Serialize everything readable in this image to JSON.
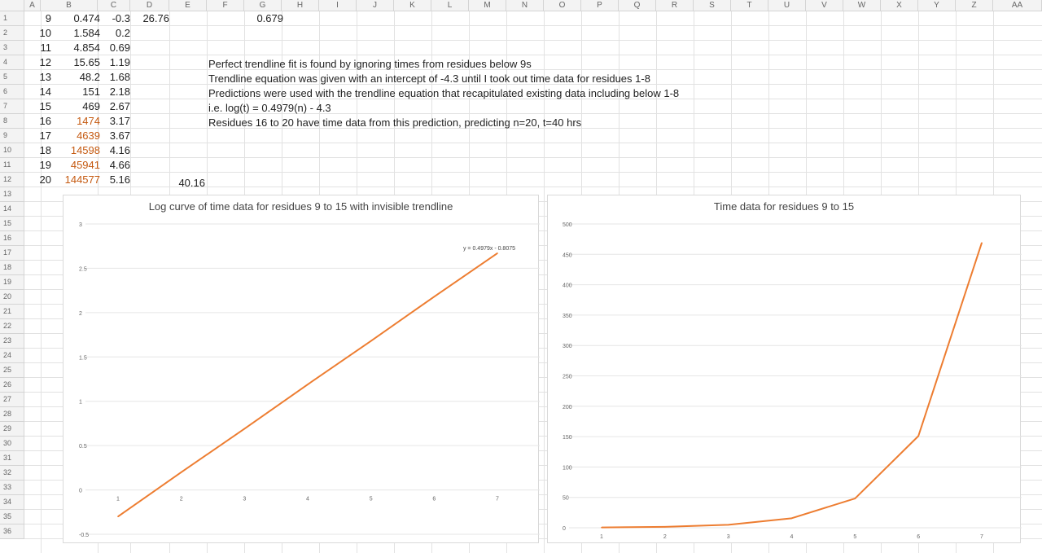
{
  "columns": [
    "A",
    "B",
    "C",
    "D",
    "E",
    "F",
    "G",
    "H",
    "I",
    "J",
    "K",
    "L",
    "M",
    "N",
    "O",
    "P",
    "Q",
    "R",
    "S",
    "T",
    "U",
    "V",
    "W",
    "X",
    "Y",
    "Z",
    "AA"
  ],
  "rows": [
    "1",
    "2",
    "3",
    "4",
    "5",
    "6",
    "7",
    "8",
    "9",
    "10",
    "11",
    "12",
    "13",
    "14",
    "15",
    "16",
    "17",
    "18",
    "19",
    "20",
    "21",
    "22",
    "23",
    "24",
    "25",
    "26",
    "27",
    "28",
    "29",
    "30",
    "31",
    "32",
    "33",
    "34",
    "35",
    "36"
  ],
  "table": {
    "colA": [
      "9",
      "10",
      "11",
      "12",
      "13",
      "14",
      "15",
      "16",
      "17",
      "18",
      "19",
      "20"
    ],
    "colB": [
      "0.474",
      "1.584",
      "4.854",
      "15.65",
      "48.2",
      "151",
      "469",
      "1474",
      "4639",
      "14598",
      "45941",
      "144577"
    ],
    "colC": [
      "-0.3",
      "0.2",
      "0.69",
      "1.19",
      "1.68",
      "2.18",
      "2.67",
      "3.17",
      "3.67",
      "4.16",
      "4.66",
      "5.16"
    ],
    "predicted_rows_start_index": 7
  },
  "misc_cells": {
    "E1": "26.76",
    "G1": "0.679",
    "E12": "40.16"
  },
  "notes": [
    "Perfect trendline fit is found by ignoring times from residues below 9s",
    "Trendline equation was given with an intercept of -4.3 until I took out time data for residues 1-8",
    "Predictions were used with the trendline equation that recapitulated existing data including below 1-8",
    "i.e. log(t) = 0.4979(n) - 4.3",
    "Residues 16 to 20 have time data from this prediction, predicting n=20, t=40 hrs"
  ],
  "colors": {
    "series": "#ed7d31",
    "predicted_text": "#c55a11"
  },
  "chart_data": [
    {
      "type": "line",
      "title": "Log curve of time data for residues 9 to 15 with invisible trendline",
      "x": [
        1,
        2,
        3,
        4,
        5,
        6,
        7
      ],
      "series": [
        {
          "values": [
            -0.3,
            0.2,
            0.69,
            1.19,
            1.68,
            2.18,
            2.67
          ]
        }
      ],
      "ylim": [
        -0.5,
        3
      ],
      "yticks": [
        "3",
        "2.5",
        "2",
        "1.5",
        "1",
        "0.5",
        "0",
        "-0.5"
      ],
      "xticks": [
        "1",
        "2",
        "3",
        "4",
        "5",
        "6",
        "7"
      ],
      "trendline_label": "y = 0.4979x - 0.8075",
      "grid": true
    },
    {
      "type": "line",
      "title": "Time data for residues 9 to 15",
      "x": [
        1,
        2,
        3,
        4,
        5,
        6,
        7
      ],
      "series": [
        {
          "values": [
            0.474,
            1.584,
            4.854,
            15.65,
            48.2,
            151,
            469
          ]
        }
      ],
      "ylim": [
        0,
        500
      ],
      "yticks": [
        "500",
        "450",
        "400",
        "350",
        "300",
        "250",
        "200",
        "150",
        "100",
        "50",
        "0"
      ],
      "xticks": [
        "1",
        "2",
        "3",
        "4",
        "5",
        "6",
        "7"
      ],
      "grid": true
    }
  ]
}
